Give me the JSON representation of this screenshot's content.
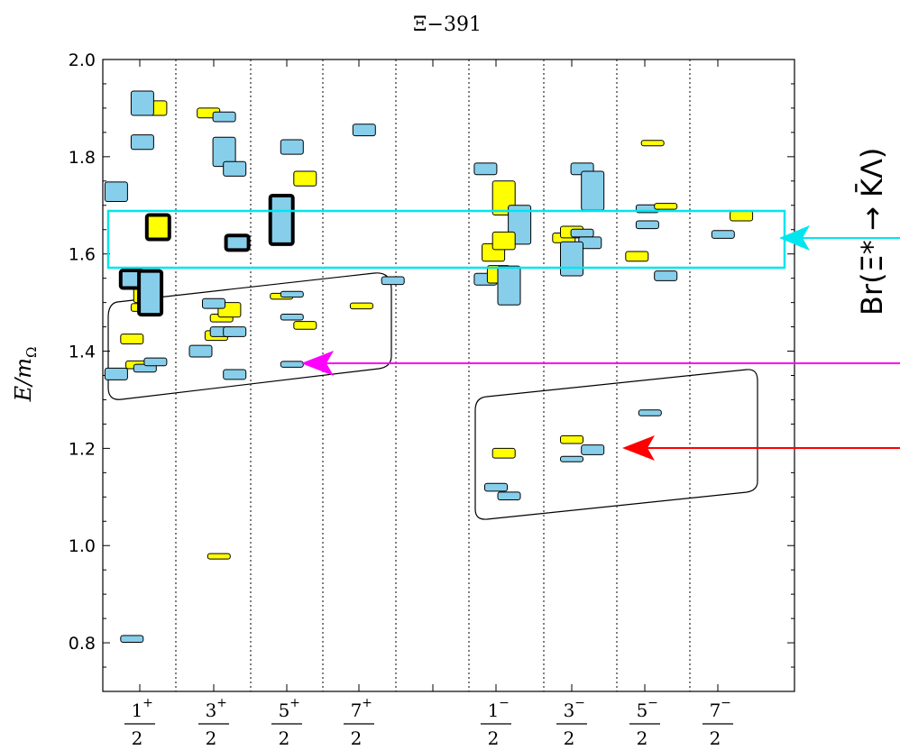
{
  "chart_data": {
    "type": "scatter",
    "title": "Ξ−391",
    "ylabel_main": "E/m",
    "ylabel_sub": "Ω",
    "ylim": [
      0.7,
      2.0
    ],
    "yticks": [
      "0.8",
      "1.0",
      "1.2",
      "1.4",
      "1.6",
      "1.8",
      "2.0"
    ],
    "ytick_values": [
      0.8,
      1.0,
      1.2,
      1.4,
      1.6,
      1.8,
      2.0
    ],
    "grid": "vertical dotted separators",
    "categories": [
      {
        "num": "1",
        "sign": "+",
        "den": "2"
      },
      {
        "num": "3",
        "sign": "+",
        "den": "2"
      },
      {
        "num": "5",
        "sign": "+",
        "den": "2"
      },
      {
        "num": "7",
        "sign": "+",
        "den": "2"
      },
      {
        "num": "1",
        "sign": "−",
        "den": "2"
      },
      {
        "num": "3",
        "sign": "−",
        "den": "2"
      },
      {
        "num": "5",
        "sign": "−",
        "den": "2"
      },
      {
        "num": "7",
        "sign": "−",
        "den": "2"
      }
    ],
    "side_label": "Br(Ξ* → K̄Λ)",
    "colors": {
      "blue": "#87ceeb",
      "yellow": "#ffff00",
      "cyan_box": "#00e5ee",
      "magenta_arrow": "#ff00ff",
      "red_arrow": "#ff0000"
    },
    "levels": [
      {
        "cat": 0,
        "off": -0.15,
        "e": 0.808,
        "s": 0.007,
        "c": "blue",
        "b": false
      },
      {
        "cat": 0,
        "off": -0.45,
        "e": 1.353,
        "s": 0.012,
        "c": "blue",
        "b": false
      },
      {
        "cat": 0,
        "off": -0.05,
        "e": 1.372,
        "s": 0.008,
        "c": "yellow",
        "b": false
      },
      {
        "cat": 0,
        "off": 0.1,
        "e": 1.365,
        "s": 0.008,
        "c": "blue",
        "b": false
      },
      {
        "cat": 0,
        "off": 0.3,
        "e": 1.378,
        "s": 0.008,
        "c": "blue",
        "b": false
      },
      {
        "cat": 0,
        "off": -0.15,
        "e": 1.425,
        "s": 0.01,
        "c": "yellow",
        "b": false
      },
      {
        "cat": 0,
        "off": 0.05,
        "e": 1.49,
        "s": 0.008,
        "c": "yellow",
        "b": false
      },
      {
        "cat": 0,
        "off": 0.1,
        "e": 1.515,
        "s": 0.015,
        "c": "yellow",
        "b": false
      },
      {
        "cat": 0,
        "off": -0.15,
        "e": 1.548,
        "s": 0.018,
        "c": "blue",
        "b": true
      },
      {
        "cat": 0,
        "off": 0.2,
        "e": 1.52,
        "s": 0.045,
        "c": "blue",
        "b": true
      },
      {
        "cat": 0,
        "off": 0.35,
        "e": 1.655,
        "s": 0.025,
        "c": "yellow",
        "b": true
      },
      {
        "cat": 0,
        "off": -0.45,
        "e": 1.728,
        "s": 0.02,
        "c": "blue",
        "b": false
      },
      {
        "cat": 0,
        "off": 0.05,
        "e": 1.83,
        "s": 0.015,
        "c": "blue",
        "b": false
      },
      {
        "cat": 0,
        "off": 0.3,
        "e": 1.9,
        "s": 0.015,
        "c": "yellow",
        "b": false
      },
      {
        "cat": 0,
        "off": 0.05,
        "e": 1.91,
        "s": 0.025,
        "c": "blue",
        "b": false
      },
      {
        "cat": 1,
        "off": -0.25,
        "e": 1.4,
        "s": 0.012,
        "c": "blue",
        "b": false
      },
      {
        "cat": 1,
        "off": 0.05,
        "e": 1.432,
        "s": 0.01,
        "c": "yellow",
        "b": false
      },
      {
        "cat": 1,
        "off": 0.15,
        "e": 1.44,
        "s": 0.01,
        "c": "blue",
        "b": false
      },
      {
        "cat": 1,
        "off": 0.4,
        "e": 1.44,
        "s": 0.01,
        "c": "blue",
        "b": false
      },
      {
        "cat": 1,
        "off": 0.15,
        "e": 1.468,
        "s": 0.008,
        "c": "yellow",
        "b": false
      },
      {
        "cat": 1,
        "off": 0.3,
        "e": 1.485,
        "s": 0.015,
        "c": "yellow",
        "b": false
      },
      {
        "cat": 1,
        "off": 0.0,
        "e": 1.498,
        "s": 0.01,
        "c": "blue",
        "b": false
      },
      {
        "cat": 1,
        "off": 0.4,
        "e": 1.352,
        "s": 0.01,
        "c": "blue",
        "b": false
      },
      {
        "cat": 1,
        "off": 0.45,
        "e": 1.623,
        "s": 0.015,
        "c": "blue",
        "b": true
      },
      {
        "cat": 1,
        "off": 0.2,
        "e": 1.81,
        "s": 0.03,
        "c": "blue",
        "b": false
      },
      {
        "cat": 1,
        "off": 0.4,
        "e": 1.775,
        "s": 0.015,
        "c": "blue",
        "b": false
      },
      {
        "cat": 1,
        "off": -0.1,
        "e": 1.89,
        "s": 0.01,
        "c": "yellow",
        "b": false
      },
      {
        "cat": 1,
        "off": 0.2,
        "e": 1.882,
        "s": 0.01,
        "c": "blue",
        "b": false
      },
      {
        "cat": 1,
        "off": 0.1,
        "e": 0.978,
        "s": 0.004,
        "c": "yellow",
        "b": false
      },
      {
        "cat": 2,
        "off": -0.1,
        "e": 1.513,
        "s": 0.006,
        "c": "yellow",
        "b": false
      },
      {
        "cat": 2,
        "off": 0.1,
        "e": 1.517,
        "s": 0.006,
        "c": "blue",
        "b": false
      },
      {
        "cat": 2,
        "off": 0.1,
        "e": 1.47,
        "s": 0.006,
        "c": "blue",
        "b": false
      },
      {
        "cat": 2,
        "off": 0.35,
        "e": 1.453,
        "s": 0.008,
        "c": "yellow",
        "b": false
      },
      {
        "cat": 2,
        "off": 0.1,
        "e": 1.373,
        "s": 0.006,
        "c": "blue",
        "b": false
      },
      {
        "cat": 2,
        "off": -0.1,
        "e": 1.67,
        "s": 0.05,
        "c": "blue",
        "b": true
      },
      {
        "cat": 2,
        "off": 0.1,
        "e": 1.82,
        "s": 0.015,
        "c": "blue",
        "b": false
      },
      {
        "cat": 2,
        "off": 0.35,
        "e": 1.755,
        "s": 0.015,
        "c": "yellow",
        "b": false
      },
      {
        "cat": 3,
        "off": 0.05,
        "e": 1.493,
        "s": 0.006,
        "c": "yellow",
        "b": false
      },
      {
        "cat": 3,
        "off": 0.1,
        "e": 1.855,
        "s": 0.012,
        "c": "blue",
        "b": false
      },
      {
        "cat": 3,
        "off": 0.65,
        "e": 1.545,
        "s": 0.008,
        "c": "blue",
        "b": false
      },
      {
        "cat": 4,
        "off": -0.2,
        "e": 1.775,
        "s": 0.012,
        "c": "blue",
        "b": false
      },
      {
        "cat": 4,
        "off": 0.15,
        "e": 1.715,
        "s": 0.035,
        "c": "yellow",
        "b": false
      },
      {
        "cat": 4,
        "off": 0.45,
        "e": 1.66,
        "s": 0.04,
        "c": "blue",
        "b": false
      },
      {
        "cat": 4,
        "off": -0.2,
        "e": 1.548,
        "s": 0.012,
        "c": "blue",
        "b": false
      },
      {
        "cat": 4,
        "off": 0.05,
        "e": 1.558,
        "s": 0.018,
        "c": "yellow",
        "b": false
      },
      {
        "cat": 4,
        "off": -0.05,
        "e": 1.603,
        "s": 0.018,
        "c": "yellow",
        "b": false
      },
      {
        "cat": 4,
        "off": 0.15,
        "e": 1.627,
        "s": 0.018,
        "c": "yellow",
        "b": false
      },
      {
        "cat": 4,
        "off": 0.25,
        "e": 1.535,
        "s": 0.04,
        "c": "blue",
        "b": false
      },
      {
        "cat": 4,
        "off": 0.15,
        "e": 1.19,
        "s": 0.01,
        "c": "yellow",
        "b": false
      },
      {
        "cat": 4,
        "off": 0.0,
        "e": 1.12,
        "s": 0.008,
        "c": "blue",
        "b": false
      },
      {
        "cat": 4,
        "off": 0.25,
        "e": 1.102,
        "s": 0.008,
        "c": "blue",
        "b": false
      },
      {
        "cat": 5,
        "off": -0.15,
        "e": 1.633,
        "s": 0.01,
        "c": "yellow",
        "b": false
      },
      {
        "cat": 5,
        "off": 0.0,
        "e": 1.645,
        "s": 0.012,
        "c": "yellow",
        "b": false
      },
      {
        "cat": 5,
        "off": 0.2,
        "e": 1.643,
        "s": 0.008,
        "c": "blue",
        "b": false
      },
      {
        "cat": 5,
        "off": 0.35,
        "e": 1.623,
        "s": 0.012,
        "c": "blue",
        "b": false
      },
      {
        "cat": 5,
        "off": 0.0,
        "e": 1.59,
        "s": 0.035,
        "c": "blue",
        "b": false
      },
      {
        "cat": 5,
        "off": 0.2,
        "e": 1.775,
        "s": 0.012,
        "c": "blue",
        "b": false
      },
      {
        "cat": 5,
        "off": 0.4,
        "e": 1.73,
        "s": 0.04,
        "c": "blue",
        "b": false
      },
      {
        "cat": 5,
        "off": 0.0,
        "e": 1.218,
        "s": 0.008,
        "c": "yellow",
        "b": false
      },
      {
        "cat": 5,
        "off": 0.0,
        "e": 1.178,
        "s": 0.005,
        "c": "blue",
        "b": false
      },
      {
        "cat": 5,
        "off": 0.4,
        "e": 1.197,
        "s": 0.01,
        "c": "blue",
        "b": false
      },
      {
        "cat": 6,
        "off": -0.15,
        "e": 1.595,
        "s": 0.01,
        "c": "yellow",
        "b": false
      },
      {
        "cat": 6,
        "off": 0.05,
        "e": 1.66,
        "s": 0.008,
        "c": "blue",
        "b": false
      },
      {
        "cat": 6,
        "off": 0.05,
        "e": 1.693,
        "s": 0.008,
        "c": "blue",
        "b": false
      },
      {
        "cat": 6,
        "off": 0.4,
        "e": 1.698,
        "s": 0.006,
        "c": "yellow",
        "b": false
      },
      {
        "cat": 6,
        "off": 0.4,
        "e": 1.555,
        "s": 0.01,
        "c": "blue",
        "b": false
      },
      {
        "cat": 6,
        "off": 0.15,
        "e": 1.828,
        "s": 0.004,
        "c": "yellow",
        "b": false
      },
      {
        "cat": 6,
        "off": 0.1,
        "e": 1.273,
        "s": 0.006,
        "c": "blue",
        "b": false
      },
      {
        "cat": 7,
        "off": 0.45,
        "e": 1.678,
        "s": 0.01,
        "c": "yellow",
        "b": false
      },
      {
        "cat": 7,
        "off": 0.1,
        "e": 1.64,
        "s": 0.008,
        "c": "blue",
        "b": false
      }
    ]
  }
}
